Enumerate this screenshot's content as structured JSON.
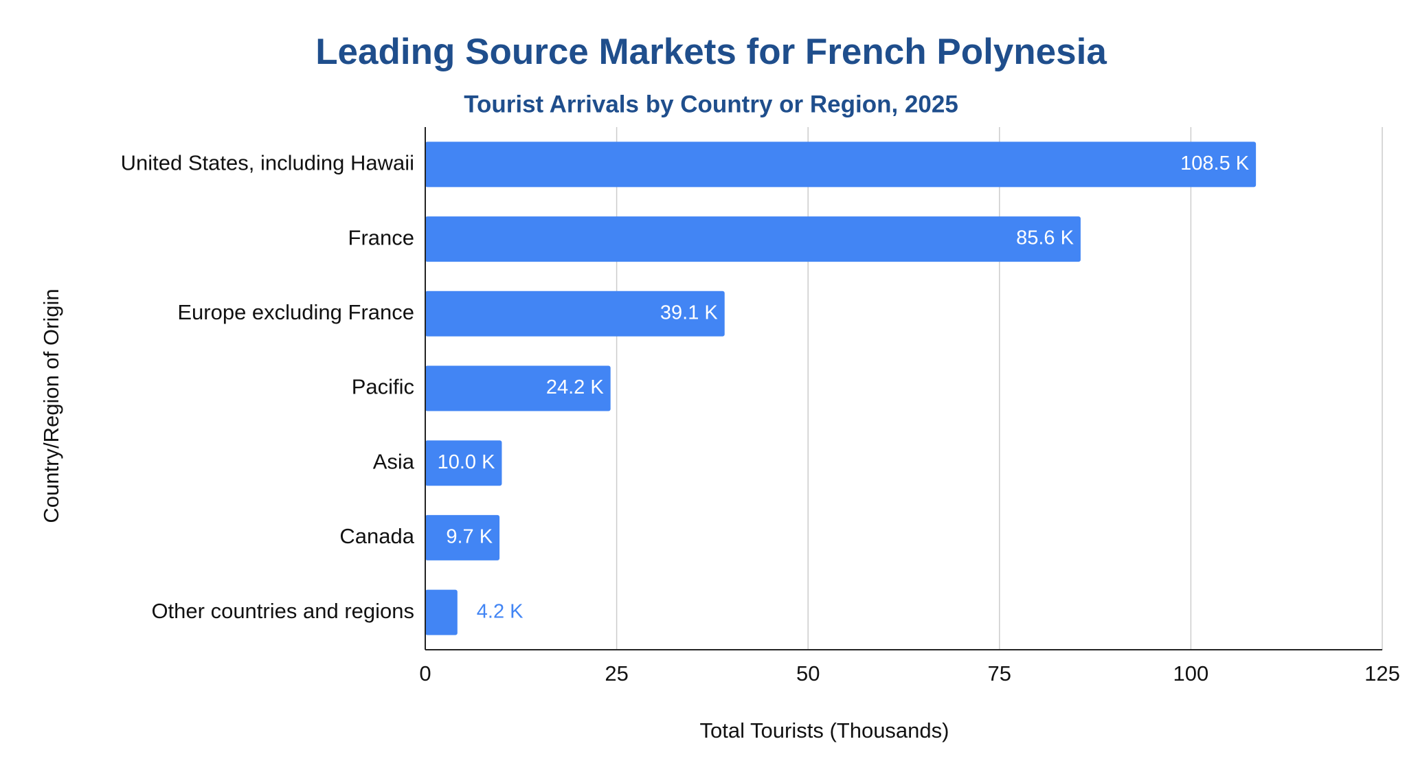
{
  "chart_data": {
    "type": "hbar",
    "title": "Leading Source Markets for French Polynesia",
    "subtitle": "Tourist Arrivals by Country or Region, 2025",
    "x_label": "Total Tourists (Thousands)",
    "y_label": "Country/Region of Origin",
    "categories": [
      "United States, including Hawaii",
      "France",
      "Europe excluding France",
      "Pacific",
      "Asia",
      "Canada",
      "Other countries and regions"
    ],
    "values": [
      108.5,
      85.6,
      39.1,
      24.2,
      10.0,
      9.7,
      4.2
    ],
    "value_labels": [
      "108.5 K",
      "85.6 K",
      "39.1 K",
      "24.2 K",
      "10.0 K",
      "9.7 K",
      "4.2 K"
    ],
    "color": "#4285f4",
    "xlim": [
      0,
      125
    ],
    "xticks": [
      0,
      25,
      50,
      75,
      100,
      125
    ],
    "grid": true
  }
}
